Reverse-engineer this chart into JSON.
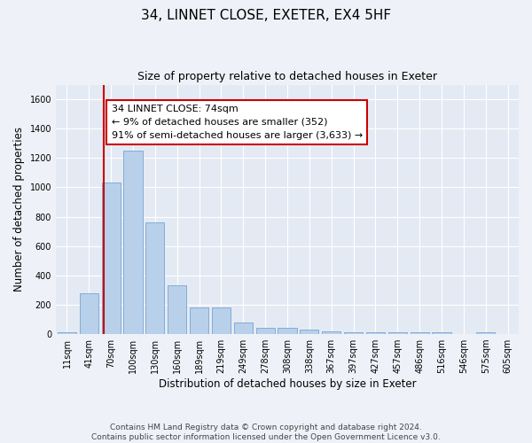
{
  "title": "34, LINNET CLOSE, EXETER, EX4 5HF",
  "subtitle": "Size of property relative to detached houses in Exeter",
  "xlabel": "Distribution of detached houses by size in Exeter",
  "ylabel": "Number of detached properties",
  "footer_line1": "Contains HM Land Registry data © Crown copyright and database right 2024.",
  "footer_line2": "Contains public sector information licensed under the Open Government Licence v3.0.",
  "categories": [
    "11sqm",
    "41sqm",
    "70sqm",
    "100sqm",
    "130sqm",
    "160sqm",
    "189sqm",
    "219sqm",
    "249sqm",
    "278sqm",
    "308sqm",
    "338sqm",
    "367sqm",
    "397sqm",
    "427sqm",
    "457sqm",
    "486sqm",
    "516sqm",
    "546sqm",
    "575sqm",
    "605sqm"
  ],
  "values": [
    10,
    280,
    1035,
    1250,
    760,
    330,
    182,
    182,
    80,
    45,
    40,
    30,
    20,
    15,
    10,
    10,
    10,
    10,
    0,
    10,
    0
  ],
  "bar_color": "#b8d0ea",
  "bar_edge_color": "#6699cc",
  "bar_width": 0.85,
  "ylim": [
    0,
    1700
  ],
  "yticks": [
    0,
    200,
    400,
    600,
    800,
    1000,
    1200,
    1400,
    1600
  ],
  "vline_color": "#cc0000",
  "annotation_text_line1": "34 LINNET CLOSE: 74sqm",
  "annotation_text_line2": "← 9% of detached houses are smaller (352)",
  "annotation_text_line3": "91% of semi-detached houses are larger (3,633) →",
  "bg_color": "#eef2f8",
  "plot_bg_color": "#e4eaf4",
  "grid_color": "#ffffff",
  "title_fontsize": 11,
  "subtitle_fontsize": 9,
  "axis_label_fontsize": 8.5,
  "tick_fontsize": 7,
  "footer_fontsize": 6.5,
  "annot_fontsize": 8
}
